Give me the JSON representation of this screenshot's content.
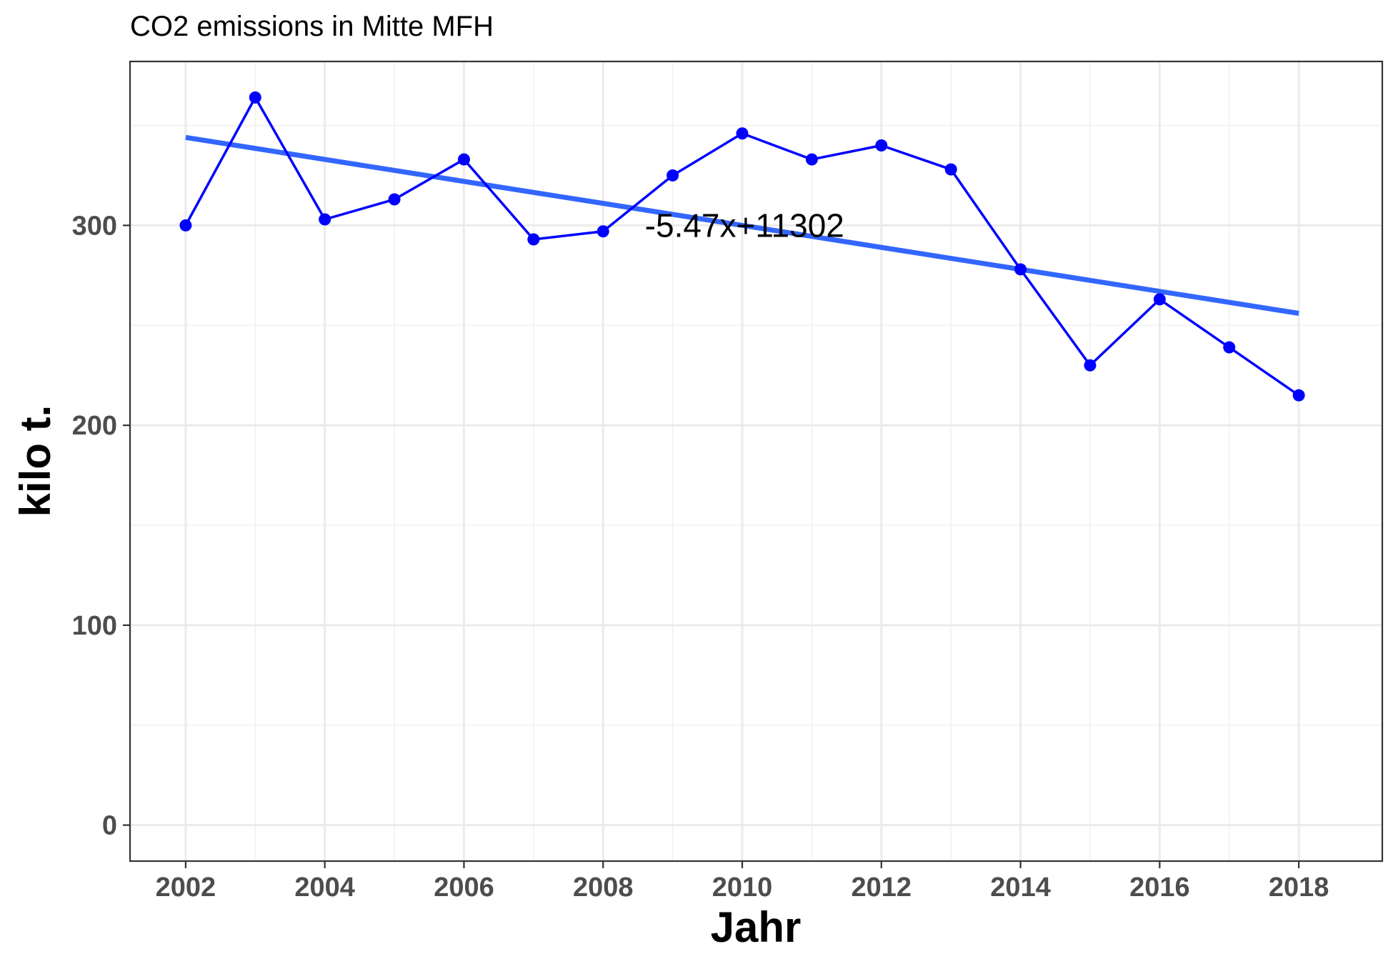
{
  "chart_data": {
    "type": "line",
    "title": "CO2 emissions in Mitte MFH",
    "xlabel": "Jahr",
    "ylabel": "kilo t.",
    "xlim": [
      2001.2,
      2019.2
    ],
    "ylim": [
      -18,
      382
    ],
    "x_ticks": [
      2002,
      2004,
      2006,
      2008,
      2010,
      2012,
      2014,
      2016,
      2018
    ],
    "y_ticks": [
      0,
      100,
      200,
      300
    ],
    "grid": true,
    "legend": "none",
    "series": [
      {
        "x": [
          2002,
          2003,
          2004,
          2005,
          2006,
          2007,
          2008,
          2009,
          2010,
          2011,
          2012,
          2013,
          2014,
          2015,
          2016,
          2017,
          2018
        ],
        "y": [
          300,
          364,
          303,
          313,
          333,
          293,
          297,
          325,
          346,
          333,
          340,
          328,
          278,
          230,
          263,
          239,
          215
        ],
        "color": "#0000ff"
      }
    ],
    "trend_line": {
      "x": [
        2002,
        2018
      ],
      "y": [
        344,
        256
      ],
      "color": "#3366ff"
    },
    "annotation": {
      "text": "-5.47x+11302",
      "x": 2008.6,
      "y": 300
    }
  }
}
